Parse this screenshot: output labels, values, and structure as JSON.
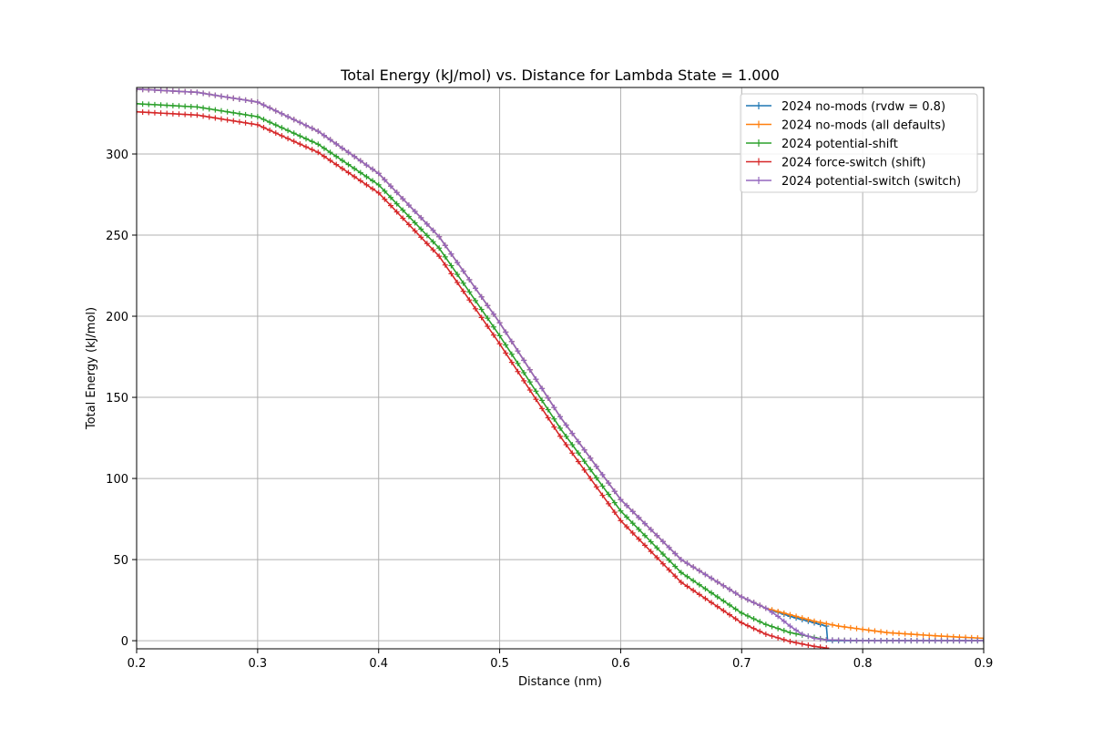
{
  "chart_data": {
    "type": "line",
    "title": "Total Energy (kJ/mol) vs. Distance for Lambda State = 1.000",
    "xlabel": "Distance (nm)",
    "ylabel": "Total Energy (kJ/mol)",
    "xlim": [
      0.2,
      0.9
    ],
    "ylim": [
      -5,
      341
    ],
    "xticks": [
      "0.2",
      "0.3",
      "0.4",
      "0.5",
      "0.6",
      "0.7",
      "0.8",
      "0.9"
    ],
    "yticks": [
      "0",
      "50",
      "100",
      "150",
      "200",
      "250",
      "300"
    ],
    "xtick_values": [
      0.2,
      0.3,
      0.4,
      0.5,
      0.6,
      0.7,
      0.8,
      0.9
    ],
    "ytick_values": [
      0,
      50,
      100,
      150,
      200,
      250,
      300
    ],
    "grid": true,
    "legend_position": "top-right",
    "marker": "plus",
    "series": [
      {
        "name": "2024 no-mods (rvdw = 0.8)",
        "color": "#1f77b4",
        "x": [
          0.2,
          0.25,
          0.3,
          0.35,
          0.4,
          0.45,
          0.5,
          0.55,
          0.6,
          0.65,
          0.7,
          0.72,
          0.74,
          0.76,
          0.77,
          0.771,
          0.8,
          0.85,
          0.9
        ],
        "y": [
          340,
          338,
          332,
          314,
          288,
          249,
          196,
          138,
          87,
          50,
          27,
          20,
          15,
          11,
          9,
          0,
          0,
          0,
          0
        ]
      },
      {
        "name": "2024 no-mods (all defaults)",
        "color": "#ff7f0e",
        "x": [
          0.2,
          0.25,
          0.3,
          0.35,
          0.4,
          0.45,
          0.5,
          0.55,
          0.6,
          0.65,
          0.7,
          0.72,
          0.74,
          0.76,
          0.78,
          0.8,
          0.82,
          0.85,
          0.88,
          0.9
        ],
        "y": [
          340,
          338,
          332,
          314,
          288,
          249,
          196,
          138,
          87,
          50,
          27,
          20,
          16,
          12,
          9,
          7,
          5,
          3.5,
          2.2,
          1.5
        ]
      },
      {
        "name": "2024 potential-shift",
        "color": "#2ca02c",
        "x": [
          0.2,
          0.25,
          0.3,
          0.35,
          0.4,
          0.45,
          0.5,
          0.55,
          0.6,
          0.65,
          0.7,
          0.72,
          0.74,
          0.76,
          0.77,
          0.8,
          0.85,
          0.9
        ],
        "y": [
          331,
          329,
          323,
          306,
          281,
          242,
          188,
          131,
          80,
          42,
          17,
          10,
          5,
          2,
          0.5,
          0,
          0,
          0
        ]
      },
      {
        "name": "2024 force-switch (shift)",
        "color": "#d62728",
        "x": [
          0.2,
          0.25,
          0.3,
          0.35,
          0.4,
          0.45,
          0.5,
          0.55,
          0.6,
          0.65,
          0.7,
          0.72,
          0.74,
          0.76,
          0.77
        ],
        "y": [
          326,
          324,
          318,
          301,
          276,
          237,
          183,
          126,
          74,
          36,
          11,
          4,
          -0.5,
          -3.5,
          -4.5
        ]
      },
      {
        "name": "2024 potential-switch (switch)",
        "color": "#9467bd",
        "x": [
          0.2,
          0.25,
          0.3,
          0.35,
          0.4,
          0.45,
          0.5,
          0.55,
          0.6,
          0.65,
          0.7,
          0.72,
          0.73,
          0.74,
          0.75,
          0.76,
          0.77,
          0.8,
          0.85,
          0.9
        ],
        "y": [
          340,
          338,
          332,
          314,
          288,
          249,
          196,
          138,
          87,
          50,
          27,
          20,
          15,
          9,
          4,
          1.5,
          0.5,
          0,
          0,
          0
        ]
      }
    ]
  }
}
